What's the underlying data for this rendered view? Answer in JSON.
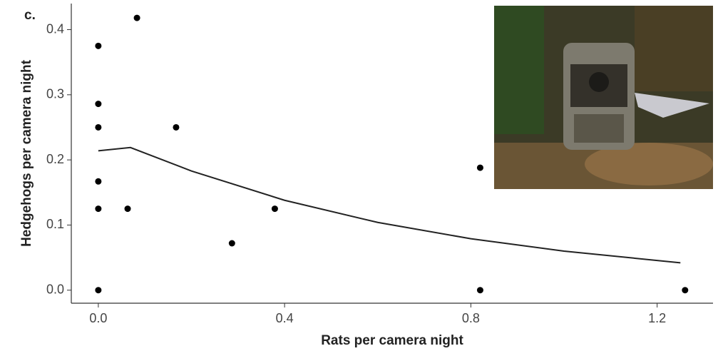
{
  "chart_data": {
    "type": "scatter",
    "panel_label": "c.",
    "x_label": "Rats per camera night",
    "y_label": "Hedgehogs per camera night",
    "xlim": [
      -0.058,
      1.32
    ],
    "ylim": [
      -0.02,
      0.44
    ],
    "xticks": [
      {
        "value": 0,
        "label": "0.0"
      },
      0.4,
      0.8,
      1.2
    ],
    "yticks": [
      {
        "value": 0,
        "label": "0.0"
      },
      0.1,
      0.2,
      0.3,
      0.4
    ],
    "series": [
      {
        "type": "scatter",
        "color": "#000000",
        "x": [
          0,
          0,
          0,
          0,
          0,
          0,
          0.083,
          0.167,
          0.063,
          0.287,
          0.379,
          0.82,
          0.82,
          1.26
        ],
        "values": [
          0.375,
          0.286,
          0.25,
          0.167,
          0.125,
          0,
          0.418,
          0.25,
          0.125,
          0.072,
          0.125,
          0.188,
          0,
          0
        ]
      },
      {
        "type": "line",
        "color": "#222222",
        "x": [
          0,
          0.069,
          0.2,
          0.4,
          0.6,
          0.8,
          1.0,
          1.25
        ],
        "values": [
          0.214,
          0.219,
          0.183,
          0.138,
          0.104,
          0.079,
          0.06,
          0.042
        ]
      }
    ]
  }
}
